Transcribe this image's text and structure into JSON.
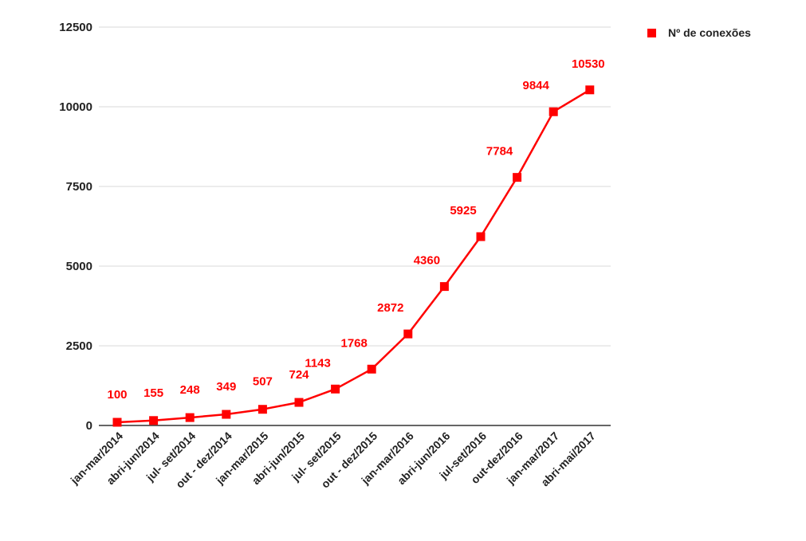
{
  "chart_data": {
    "type": "line",
    "categories": [
      "jan-mar/2014",
      "abri-jun/2014",
      "jul- set/2014",
      "out - dez/2014",
      "jan-mar/2015",
      "abri-jun/2015",
      "jul- set/2015",
      "out - dez/2015",
      "jan-mar/2016",
      "abri-jun/2016",
      "jul-set/2016",
      "out-dez/2016",
      "jan-mar/2017",
      "abri-mai/2017"
    ],
    "series": [
      {
        "name": "Nº de conexões",
        "values": [
          100,
          155,
          248,
          349,
          507,
          724,
          1143,
          1768,
          2872,
          4360,
          5925,
          7784,
          9844,
          10530
        ],
        "color": "#ff0000"
      }
    ],
    "data_labels": [
      "100",
      "155",
      "248",
      "349",
      "507",
      "724",
      "1143",
      "1768",
      "2872",
      "4360",
      "5925",
      "7784",
      "9844",
      "10530"
    ],
    "y_ticks": [
      "0",
      "2500",
      "5000",
      "7500",
      "10000",
      "12500"
    ],
    "ylim": [
      0,
      12500
    ],
    "grid": true,
    "legend_position": "top-right",
    "title": "",
    "xlabel": "",
    "ylabel": "",
    "colors": {
      "series": "#ff0000",
      "gridline": "#d9d9d9",
      "axis": "#333333",
      "text": "#222222"
    }
  }
}
